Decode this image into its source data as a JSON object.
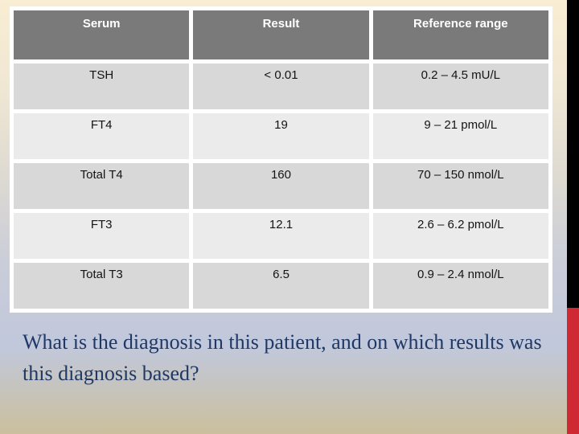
{
  "table": {
    "columns": [
      "Serum",
      "Result",
      "Reference range"
    ],
    "rows": [
      {
        "serum": "TSH",
        "result": "< 0.01",
        "range": "0.2 – 4.5 mU/L"
      },
      {
        "serum": "FT4",
        "result": "19",
        "range": "9 – 21 pmol/L"
      },
      {
        "serum": "Total T4",
        "result": "160",
        "range": "70 – 150 nmol/L"
      },
      {
        "serum": "FT3",
        "result": "12.1",
        "range": "2.6 – 6.2 pmol/L"
      },
      {
        "serum": "Total T3",
        "result": "6.5",
        "range": "0.9 – 2.4 nmol/L"
      }
    ]
  },
  "question": "What is the diagnosis in this patient, and on which results was this diagnosis based?",
  "colors": {
    "header_bg": "#7a7a7a",
    "header_fg": "#ffffff",
    "row_dark": "#d8d8d8",
    "row_light": "#ebebeb",
    "cell_fg": "#141414",
    "grid_white": "#ffffff",
    "question_fg": "#1f3864",
    "stripe_black": "#000000",
    "stripe_red": "#cf2a33"
  }
}
